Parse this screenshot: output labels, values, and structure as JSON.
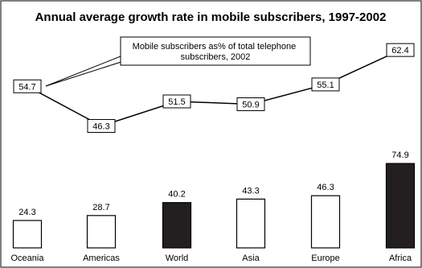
{
  "chart_data": {
    "type": "bar",
    "title": "Annual average growth rate in mobile subscribers, 1997-2002",
    "xlabel": "",
    "ylabel": "",
    "ylim": [
      0,
      80
    ],
    "grid": false,
    "categories": [
      "Oceania",
      "Americas",
      "World",
      "Asia",
      "Europe",
      "Africa"
    ],
    "series": [
      {
        "values": [
          24.3,
          28.7,
          40.2,
          43.3,
          46.3,
          74.9
        ],
        "highlight": [
          false,
          false,
          true,
          false,
          false,
          true
        ]
      },
      {
        "name": "Mobile subscribers as% of total telephone subscribers, 2002",
        "type": "line",
        "values": [
          54.7,
          46.3,
          51.5,
          50.9,
          55.1,
          62.4
        ]
      }
    ],
    "annotations": [
      "Mobile subscribers as% of total telephone subscribers, 2002"
    ],
    "colors": {
      "bar_fill": "#ffffff",
      "bar_highlight": "#231f20",
      "stroke": "#000000",
      "text": "#000000"
    }
  }
}
